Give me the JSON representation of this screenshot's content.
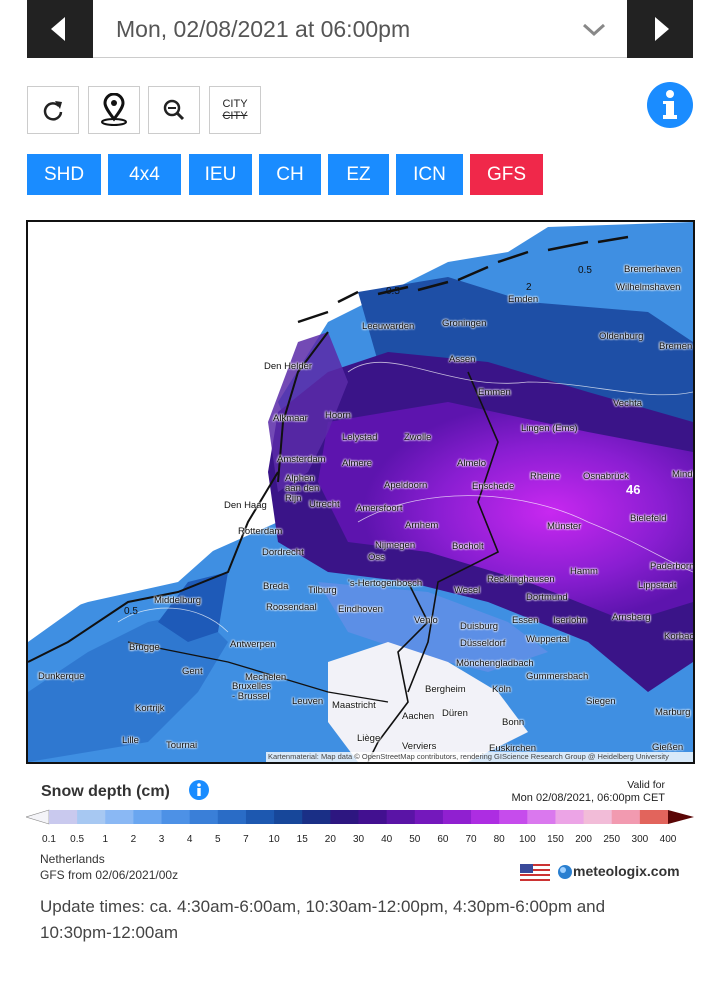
{
  "header": {
    "date": "Mon, 02/08/2021 at 06:00pm"
  },
  "tools": {
    "city": "CITY",
    "city_off": "CITY"
  },
  "models": [
    "SHD",
    "4x4",
    "IEU",
    "CH",
    "EZ",
    "ICN",
    "GFS"
  ],
  "active_model": "GFS",
  "map": {
    "labels": [
      "Bremerhaven",
      "Wilhelmshaven",
      "Emden",
      "Groningen",
      "Leeuwarden",
      "Oldenburg",
      "Bremen",
      "Den Helder",
      "Assen",
      "Emmen",
      "Vechta",
      "Alkmaar",
      "Hoorn",
      "Lelystad",
      "Zwolle",
      "Lingen (Ems)",
      "Amsterdam",
      "Almere",
      "Almelo",
      "Rheine",
      "Osnabrück",
      "Minden",
      "Alphen aan den Rijn",
      "Apeldoorn",
      "Enschede",
      "Den Haag",
      "Utrecht",
      "Amersfoort",
      "Bielefeld",
      "Münster",
      "Arnhem",
      "Rotterdam",
      "Nijmegen",
      "Bocholt",
      "Paderborn",
      "Dordrecht",
      "Oss",
      "Hamm",
      "Recklinghausen",
      "Lippstadt",
      "Breda",
      "Tilburg",
      "'s-Hertogenbosch",
      "Wesel",
      "Dortmund",
      "Middelburg",
      "Roosendaal",
      "Eindhoven",
      "Venlo",
      "Essen",
      "Iserlohn",
      "Arnsberg",
      "Duisburg",
      "Korbach",
      "Brugge",
      "Antwerpen",
      "Düsseldorf",
      "Wuppertal",
      "Mönchengladbach",
      "Gent",
      "Dunkerque",
      "Mechelen",
      "Gummersbach",
      "Bergheim",
      "Köln",
      "Siegen",
      "Bruxelles - Brussel",
      "Kortrijk",
      "Leuven",
      "Maastricht",
      "Marburg",
      "Aachen",
      "Düren",
      "Bonn",
      "Lille",
      "Tournai",
      "Liège",
      "Verviers",
      "Euskirchen",
      "Gießen"
    ],
    "contour_labels": [
      "0.5",
      "0.5",
      "2",
      "46",
      "0.5"
    ],
    "attribution": "Kartenmaterial: Map data © OpenStreetMap contributors, rendering GIScience Research Group @ Heidelberg University"
  },
  "legend": {
    "title": "Snow depth (cm)",
    "valid_label": "Valid for",
    "valid_time": "Mon 02/08/2021, 06:00pm CET",
    "ticks": [
      "0.1",
      "0.5",
      "1",
      "2",
      "3",
      "4",
      "5",
      "7",
      "10",
      "15",
      "20",
      "30",
      "40",
      "50",
      "60",
      "70",
      "80",
      "100",
      "150",
      "200",
      "250",
      "300",
      "400"
    ],
    "colors": [
      "#f4f4f8",
      "#c9c9ee",
      "#a7c8f2",
      "#8ab8f4",
      "#6aa6f0",
      "#4d91e6",
      "#3a7fd8",
      "#2a6cc6",
      "#1d58b0",
      "#17479a",
      "#1a2f86",
      "#2d1680",
      "#421090",
      "#5a14a6",
      "#7418bc",
      "#9020d0",
      "#ad2de2",
      "#c64cec",
      "#da78ee",
      "#eca4e6",
      "#f2bcd8",
      "#f29ab0",
      "#e2645c",
      "#5a0606"
    ],
    "region": "Netherlands",
    "run": "GFS from 02/06/2021/00z",
    "brand": "meteologix.com"
  },
  "footer": {
    "update_times": "Update times: ca. 4:30am-6:00am, 10:30am-12:00pm, 4:30pm-6:00pm and 10:30pm-12:00am"
  }
}
